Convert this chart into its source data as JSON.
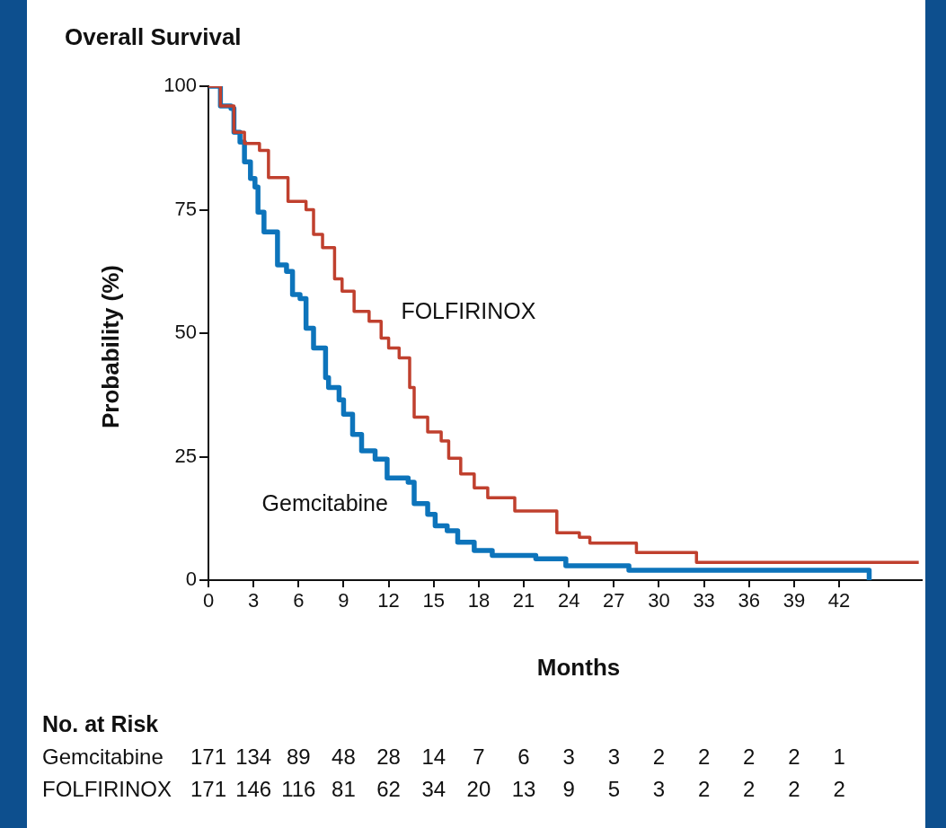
{
  "chart_data": {
    "type": "step",
    "title": "Overall Survival",
    "xlabel": "Months",
    "ylabel": "Probability (%)",
    "xlim": [
      0,
      47.5
    ],
    "xticks": [
      0,
      3,
      6,
      9,
      12,
      15,
      18,
      21,
      24,
      27,
      30,
      33,
      36,
      39,
      42
    ],
    "ylim": [
      0,
      100
    ],
    "yticks": [
      0,
      25,
      50,
      75,
      100
    ],
    "grid": false,
    "legend": false,
    "marker": "none",
    "series": [
      {
        "name": "FOLFIRINOX",
        "color": "#c0402e",
        "x": [
          0,
          0.8,
          1.7,
          2.4,
          3.4,
          4.0,
          5.3,
          6.5,
          7.0,
          7.6,
          8.4,
          8.9,
          9.7,
          10.7,
          11.5,
          12.0,
          12.7,
          13.4,
          13.7,
          14.6,
          15.5,
          16.0,
          16.8,
          17.7,
          18.6,
          20.4,
          23.2,
          24.7,
          25.4,
          28.5,
          32.5,
          47.3
        ],
        "values": [
          100,
          96,
          90.7,
          88.4,
          87,
          81.5,
          76.7,
          75,
          70,
          67.3,
          61,
          58.5,
          54.4,
          52.4,
          49,
          47,
          45,
          39,
          33,
          30,
          28.2,
          24.7,
          21.5,
          18.7,
          16.7,
          14,
          9.6,
          8.7,
          7.5,
          5.6,
          3.6,
          3.6
        ]
      },
      {
        "name": "Gemcitabine",
        "color": "#0d74bb",
        "x": [
          0,
          0.8,
          1.5,
          1.7,
          2.1,
          2.4,
          2.8,
          3.1,
          3.3,
          3.7,
          4.6,
          5.2,
          5.6,
          6.1,
          6.5,
          7.0,
          7.8,
          8.0,
          8.7,
          9.0,
          9.6,
          10.2,
          11.1,
          11.9,
          13.3,
          13.7,
          14.6,
          15.1,
          15.9,
          16.6,
          17.7,
          18.9,
          21.8,
          23.8,
          28.0,
          44.0
        ],
        "values": [
          100,
          96,
          95.5,
          90.7,
          88.7,
          84.7,
          81.3,
          79.6,
          74.5,
          70.5,
          63.8,
          62.5,
          57.8,
          57,
          51,
          47,
          41,
          39,
          36.5,
          33.6,
          29.5,
          26.2,
          24.5,
          20.7,
          19.8,
          15.5,
          13.3,
          11,
          10,
          7.7,
          6,
          5,
          4.3,
          2.9,
          2,
          0
        ]
      }
    ],
    "annotations": [
      "No. at Risk",
      "Gemcitabine 171 134 89 48 28 14 7 6 3 3 2 2 2 2 1",
      "FOLFIRINOX 171 146 116 81 62 34 20 13 9 5 3 2 2 2 2"
    ]
  }
}
